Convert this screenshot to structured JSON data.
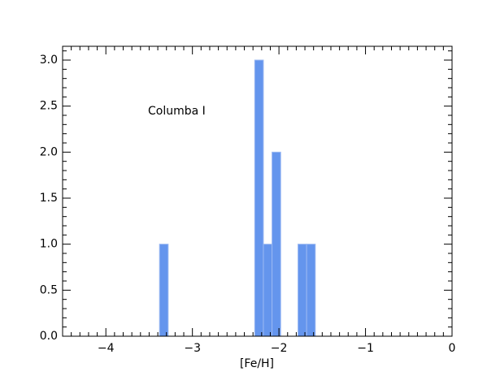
{
  "chart_data": {
    "type": "histogram",
    "xlabel": "[Fe/H]",
    "annotation": "Columba I",
    "color": "#6495ed",
    "edgecolor": "#9ab8f2",
    "bins": [
      -3.38,
      -3.28,
      -3.18,
      -3.08,
      -2.98,
      -2.88,
      -2.78,
      -2.68,
      -2.58,
      -2.48,
      -2.38,
      -2.28,
      -2.18,
      -2.08,
      -1.98,
      -1.88,
      -1.78,
      -1.68,
      -1.58
    ],
    "counts": [
      1,
      0,
      0,
      0,
      0,
      0,
      0,
      0,
      0,
      0,
      0,
      3,
      1,
      2,
      0,
      0,
      1,
      1
    ],
    "xlim": [
      -4.5,
      0
    ],
    "ylim": [
      0,
      3.15
    ],
    "xticks": [
      {
        "value": -4,
        "label": "−4"
      },
      {
        "value": -3,
        "label": "−3"
      },
      {
        "value": -2,
        "label": "−2"
      },
      {
        "value": -1,
        "label": "−1"
      },
      0
    ],
    "yticks": [
      {
        "value": 0,
        "label": "0.0"
      },
      0.5,
      {
        "value": 1,
        "label": "1.0"
      },
      1.5,
      {
        "value": 2,
        "label": "2.0"
      },
      2.5,
      {
        "value": 3,
        "label": "3.0"
      }
    ],
    "xminorticks": [
      -4.5,
      -4.4,
      -4.3,
      -4.2,
      -4.1,
      -3.9,
      -3.8,
      -3.7,
      -3.6,
      -3.5,
      -3.4,
      -3.3,
      -3.2,
      -3.1,
      -2.9,
      -2.8,
      -2.7,
      -2.6,
      -2.5,
      -2.4,
      -2.3,
      -2.2,
      -2.1,
      -1.9,
      -1.8,
      -1.7,
      -1.6,
      -1.5,
      -1.4,
      -1.3,
      -1.2,
      -1.1,
      -0.9,
      -0.8,
      -0.7,
      -0.6,
      -0.5,
      -0.4,
      -0.3,
      -0.2,
      -0.1
    ],
    "yminorticks": [
      0.1,
      0.2,
      0.3,
      0.4,
      0.6,
      0.7,
      0.8,
      0.9,
      1.1,
      1.2,
      1.3,
      1.4,
      1.6,
      1.7,
      1.8,
      1.9,
      2.1,
      2.2,
      2.3,
      2.4,
      2.6,
      2.7,
      2.8,
      2.9,
      3.1
    ]
  }
}
